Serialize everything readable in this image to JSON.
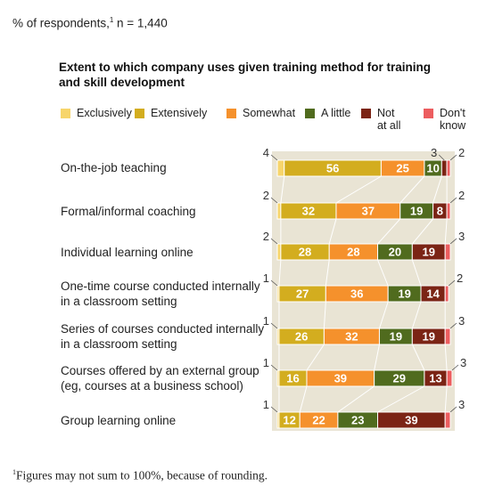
{
  "header": {
    "subtitle_text": "% of respondents,",
    "subtitle_sup": "1",
    "subtitle_n": " n = 1,440"
  },
  "footnote": {
    "sup": "1",
    "text": "Figures may not sum to 100%, because of rounding."
  },
  "colors": {
    "Exclusively": "#f7d56b",
    "Extensively": "#d3ad1f",
    "Somewhat": "#f5912c",
    "A little": "#506b1e",
    "Not at all": "#7b2415",
    "Don't know": "#ec5d5f",
    "plot_bg": "#e9e4d4"
  },
  "chart_data": {
    "type": "bar",
    "orientation": "horizontal",
    "stacked": true,
    "title": "Extent to which company uses given training method for training and skill development",
    "legend": [
      "Exclusively",
      "Extensively",
      "Somewhat",
      "A little",
      "Not at all",
      "Don't know"
    ],
    "legend_display": [
      [
        "Exclusively"
      ],
      [
        "Extensively"
      ],
      [
        "Somewhat"
      ],
      [
        "A little"
      ],
      [
        "Not",
        "at all"
      ],
      [
        "Don't",
        "know"
      ]
    ],
    "legend_placement": "top",
    "categories": [
      [
        "On-the-job teaching"
      ],
      [
        "Formal/informal coaching"
      ],
      [
        "Individual learning online"
      ],
      [
        "One-time course conducted internally",
        "in a classroom setting"
      ],
      [
        "Series of courses conducted internally",
        "in a classroom setting"
      ],
      [
        "Courses offered by an external group",
        "(eg, courses at a business school)"
      ],
      [
        "Group learning online"
      ]
    ],
    "series": [
      {
        "name": "Exclusively",
        "values": [
          4,
          2,
          2,
          1,
          1,
          1,
          1
        ]
      },
      {
        "name": "Extensively",
        "values": [
          56,
          32,
          28,
          27,
          26,
          16,
          12
        ]
      },
      {
        "name": "Somewhat",
        "values": [
          25,
          37,
          28,
          36,
          32,
          39,
          22
        ]
      },
      {
        "name": "A little",
        "values": [
          10,
          19,
          20,
          19,
          19,
          29,
          23
        ]
      },
      {
        "name": "Not at all",
        "values": [
          3,
          8,
          19,
          14,
          19,
          13,
          39
        ]
      },
      {
        "name": "Don't know",
        "values": [
          2,
          2,
          3,
          2,
          3,
          3,
          3
        ]
      }
    ],
    "xlim": [
      0,
      100
    ]
  }
}
